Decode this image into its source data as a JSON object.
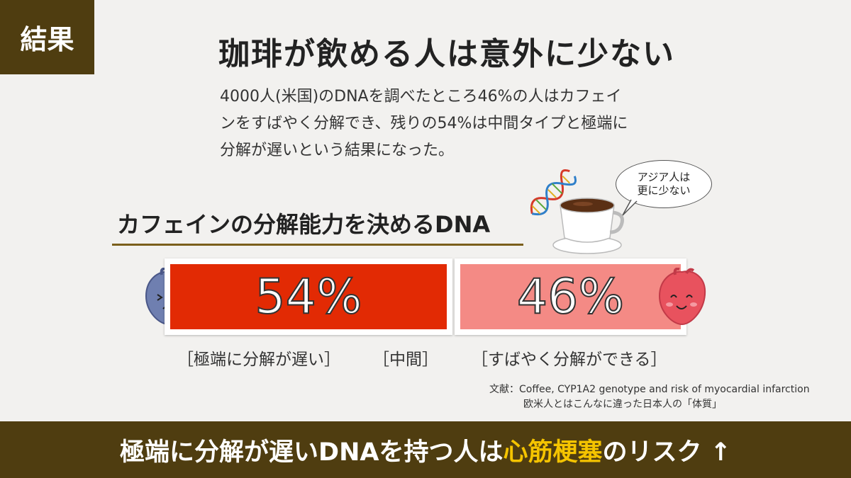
{
  "tag": "結果",
  "title": "珈琲が飲める人は意外に少ない",
  "description": [
    "4000人(米国)のDNAを調べたところ46%の人はカフェイ",
    "ンをすばやく分解でき、残りの54%は中間タイプと極端に",
    "分解が遅いという結果になった。"
  ],
  "dna_title": "カフェインの分解能力を決めるDNA",
  "bubble": [
    "アジア人は",
    "更に少ない"
  ],
  "bars": {
    "slow": {
      "percent": "54%",
      "value": 54,
      "color": "#e22a04"
    },
    "fast": {
      "percent": "46%",
      "value": 46,
      "color": "#f48a85"
    }
  },
  "labels": {
    "slow": "［極端に分解が遅い］",
    "middle": "［中間］",
    "fast": "［すばやく分解ができる］"
  },
  "reference": {
    "line1": "文献：Coffee, CYP1A2 genotype and risk of myocardial infarction",
    "line2": "欧米人とはこんなに違った日本人の「体質」"
  },
  "bottom": {
    "before": "極端に分解が遅いDNAを持つ人は",
    "highlight": "心筋梗塞",
    "after": "のリスク ↑"
  },
  "icons": [
    "sad-heart-icon",
    "happy-heart-icon",
    "dna-icon",
    "coffee-cup-icon"
  ],
  "colors": {
    "brand": "#4f3d10",
    "highlight": "#f5c400",
    "background": "#f2f1ef"
  }
}
